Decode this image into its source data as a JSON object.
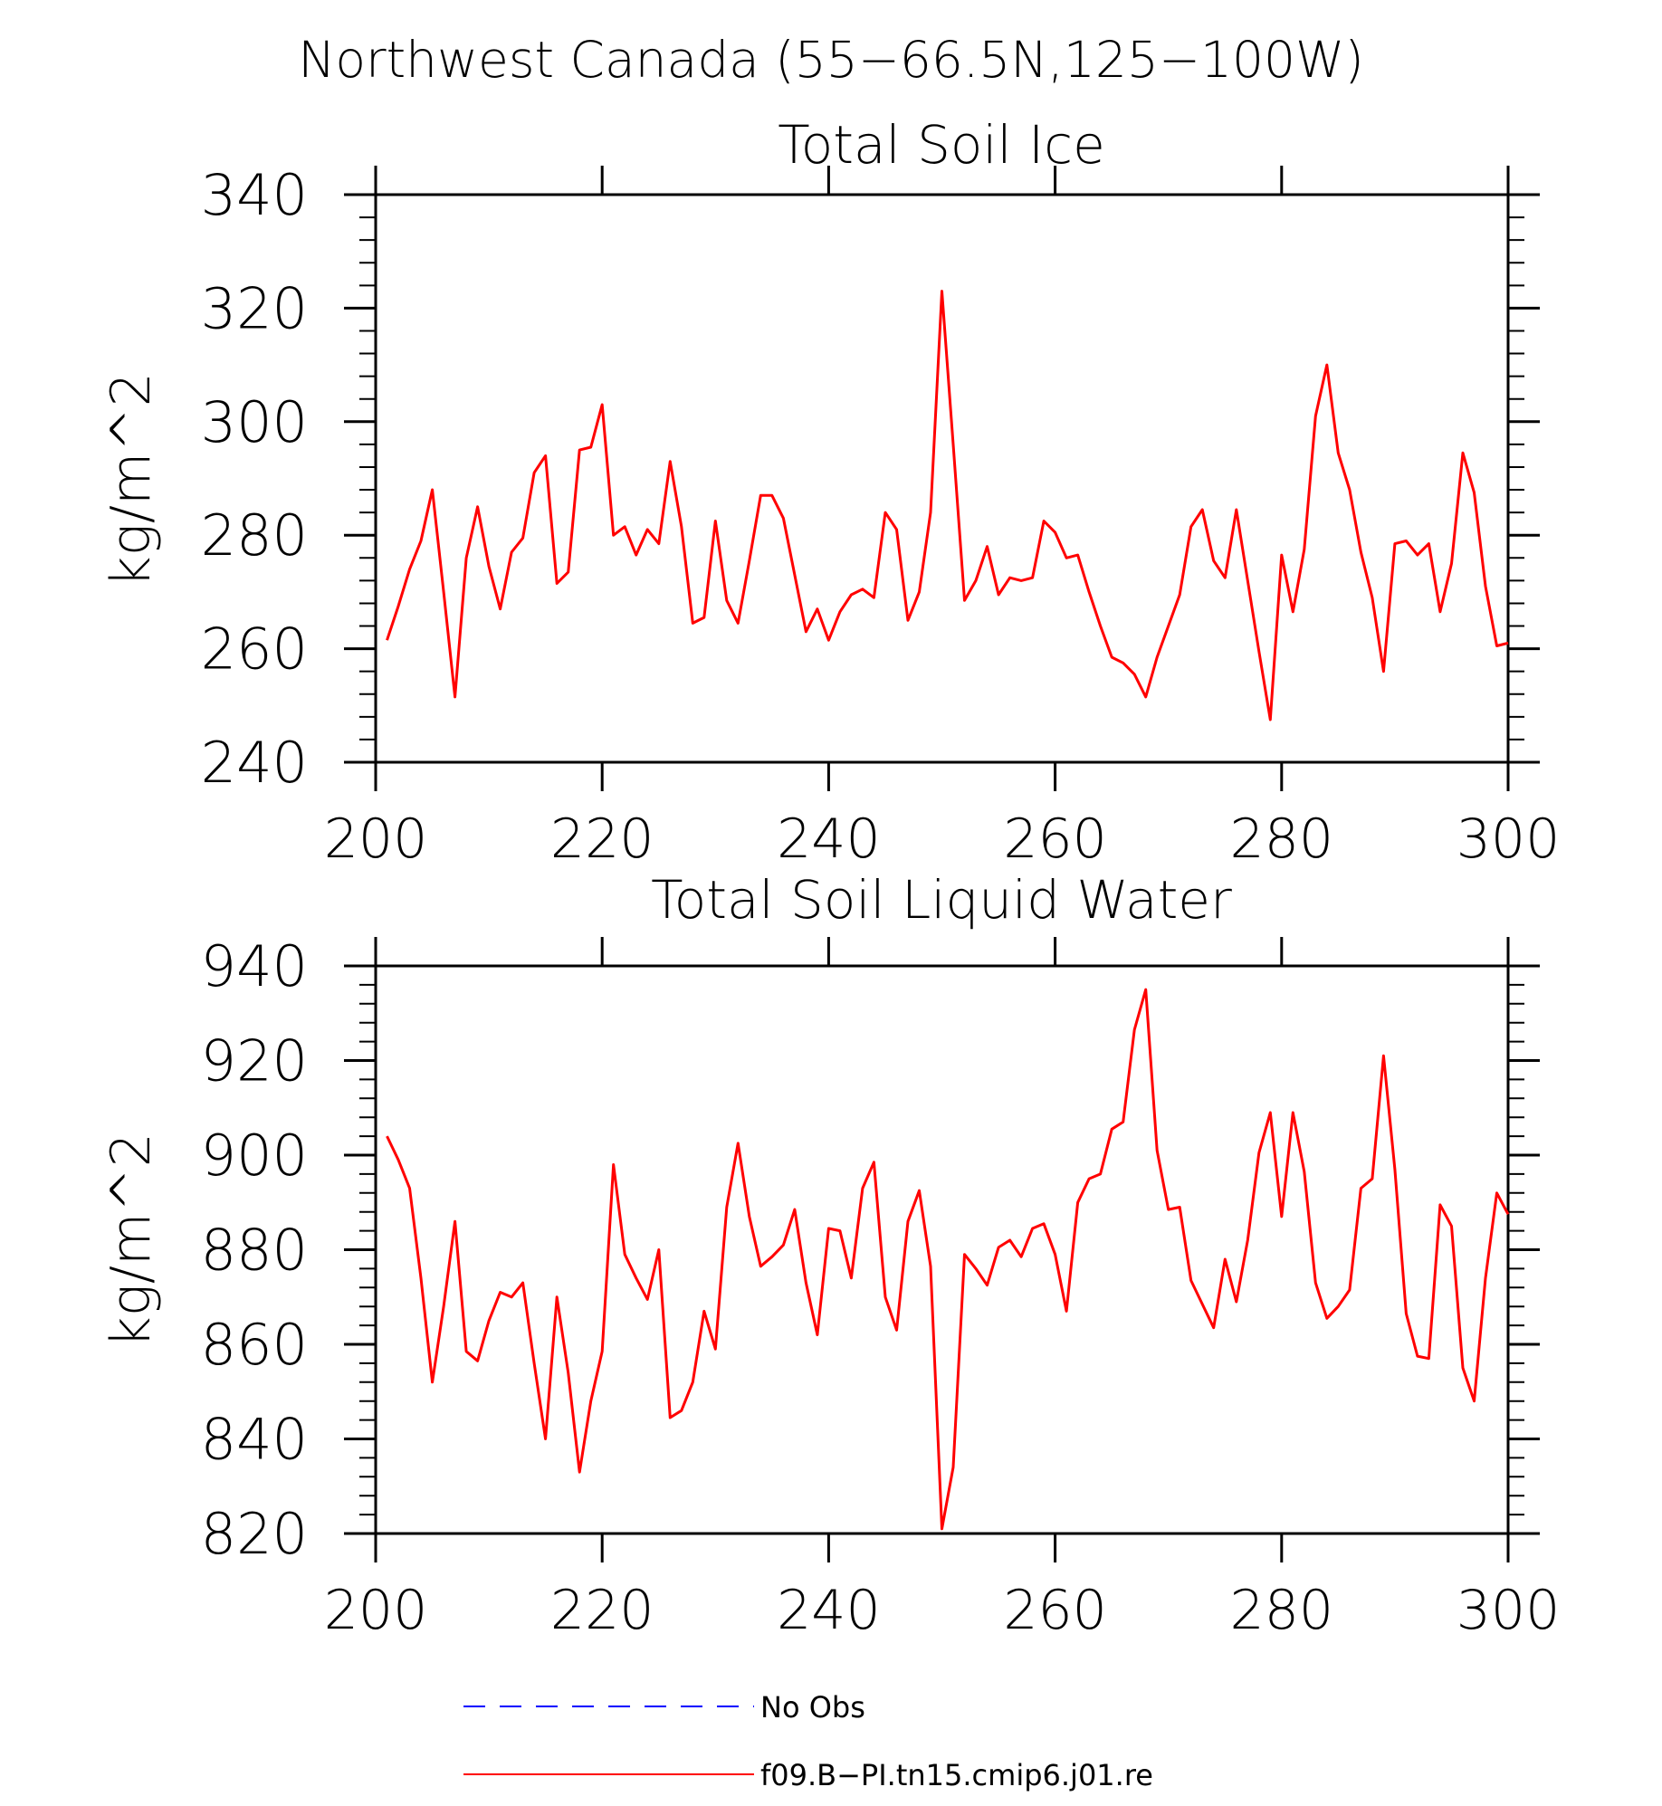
{
  "figure_title": "Northwest Canada (55−66.5N,125−100W)",
  "legend": [
    {
      "label": "No Obs",
      "color": "#0000ff",
      "style": "dashed"
    },
    {
      "label": "f09.B−PI.tn15.cmip6.j01.re",
      "color": "#ff0000",
      "style": "solid"
    }
  ],
  "chart_data": [
    {
      "type": "line",
      "title": "Total Soil Ice",
      "xlabel": "",
      "ylabel": "kg/m^2",
      "xlim": [
        200,
        300
      ],
      "ylim": [
        240,
        340
      ],
      "xticks": [
        "200",
        "220",
        "240",
        "260",
        "280",
        "300"
      ],
      "yticks": [
        "240",
        "260",
        "280",
        "300",
        "320",
        "340"
      ],
      "grid": false,
      "x_start": 201,
      "x_step": 1,
      "series": [
        {
          "name": "f09.B−PI.tn15.cmip6.j01.re",
          "color": "#ff0000",
          "values": [
            261.5,
            267.5,
            274,
            279,
            288,
            270,
            251.5,
            276,
            285,
            274.5,
            267,
            277,
            279.5,
            291,
            294,
            271.5,
            273.5,
            295,
            295.5,
            303,
            280,
            281.5,
            276.5,
            281,
            278.5,
            293,
            281.5,
            264.5,
            265.5,
            282.5,
            268.5,
            264.5,
            275.5,
            287,
            287,
            283,
            273,
            263,
            267,
            261.5,
            266.5,
            269.5,
            270.5,
            269,
            284,
            281,
            265,
            270,
            284,
            323,
            296,
            268.5,
            272,
            278,
            269.5,
            272.5,
            272,
            272.5,
            282.5,
            280.5,
            276,
            276.5,
            270,
            264,
            258.5,
            257.5,
            255.5,
            251.5,
            258.5,
            264,
            269.5,
            281.5,
            284.5,
            275.5,
            272.5,
            284.5,
            272,
            259.5,
            247.5,
            276.5,
            266.5,
            277.5,
            301,
            310,
            294.5,
            288,
            277,
            269,
            256,
            278.5,
            279,
            276.5,
            278.5,
            266.5,
            275,
            294.5,
            287.5,
            271,
            260.5,
            261
          ]
        }
      ]
    },
    {
      "type": "line",
      "title": "Total Soil Liquid Water",
      "xlabel": "",
      "ylabel": "kg/m^2",
      "xlim": [
        200,
        300
      ],
      "ylim": [
        820,
        940
      ],
      "xticks": [
        "200",
        "220",
        "240",
        "260",
        "280",
        "300"
      ],
      "yticks": [
        "820",
        "840",
        "860",
        "880",
        "900",
        "920",
        "940"
      ],
      "grid": false,
      "x_start": 201,
      "x_step": 1,
      "series": [
        {
          "name": "f09.B−PI.tn15.cmip6.j01.re",
          "color": "#ff0000",
          "values": [
            904,
            899,
            893,
            874,
            852,
            868,
            886,
            858.5,
            856.5,
            865,
            871,
            870,
            873,
            856,
            840,
            870,
            854,
            833,
            848,
            858.5,
            898,
            879,
            874,
            869.5,
            880,
            844.5,
            846,
            852,
            867,
            859,
            889,
            902.5,
            887,
            876.5,
            878.5,
            881,
            888.5,
            873,
            862,
            884.5,
            884,
            874,
            893,
            898.5,
            870,
            863,
            886,
            892.5,
            876.5,
            821,
            834,
            879,
            876,
            872.5,
            880.5,
            882,
            878.5,
            884.5,
            885.5,
            879,
            867,
            890,
            895,
            896,
            905.5,
            907,
            926.5,
            935,
            901,
            888.5,
            889,
            873.5,
            868.5,
            863.5,
            878,
            869,
            882,
            900.5,
            909,
            887,
            909,
            896.5,
            873,
            865.5,
            868,
            871.5,
            893,
            895,
            921,
            897,
            866.5,
            857.5,
            857,
            889.5,
            885,
            855,
            848,
            874,
            892,
            887.5
          ]
        }
      ]
    }
  ]
}
